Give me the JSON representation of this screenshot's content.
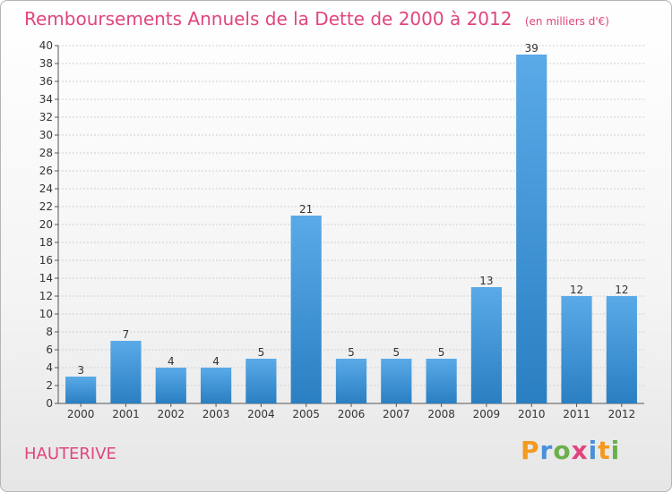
{
  "header": {
    "title": "Remboursements Annuels de la Dette de 2000 à 2012",
    "unit": "(en milliers d'€)"
  },
  "footer": {
    "city": "HAUTERIVE",
    "brand": "Proxiti"
  },
  "colors": {
    "title": "#e0457e",
    "bar_light": "#5aaae8",
    "bar_dark": "#2a7fc2",
    "grid": "#d0d0d0"
  },
  "chart_data": {
    "type": "bar",
    "title": "Remboursements Annuels de la Dette de 2000 à 2012",
    "categories": [
      "2000",
      "2001",
      "2002",
      "2003",
      "2004",
      "2005",
      "2006",
      "2007",
      "2008",
      "2009",
      "2010",
      "2011",
      "2012"
    ],
    "values": [
      3,
      7,
      4,
      4,
      5,
      21,
      5,
      5,
      5,
      13,
      39,
      12,
      12
    ],
    "data_labels": [
      "3",
      "7",
      "4",
      "4",
      "5",
      "21",
      "5",
      "5",
      "5",
      "13",
      "39",
      "12",
      "12"
    ],
    "ylim": [
      0,
      40
    ],
    "yticks": [
      "0",
      "2",
      "4",
      "6",
      "8",
      "10",
      "12",
      "14",
      "16",
      "18",
      "20",
      "22",
      "24",
      "26",
      "28",
      "30",
      "32",
      "34",
      "36",
      "38",
      "40"
    ],
    "grid": true,
    "xlabel": "",
    "ylabel": ""
  }
}
